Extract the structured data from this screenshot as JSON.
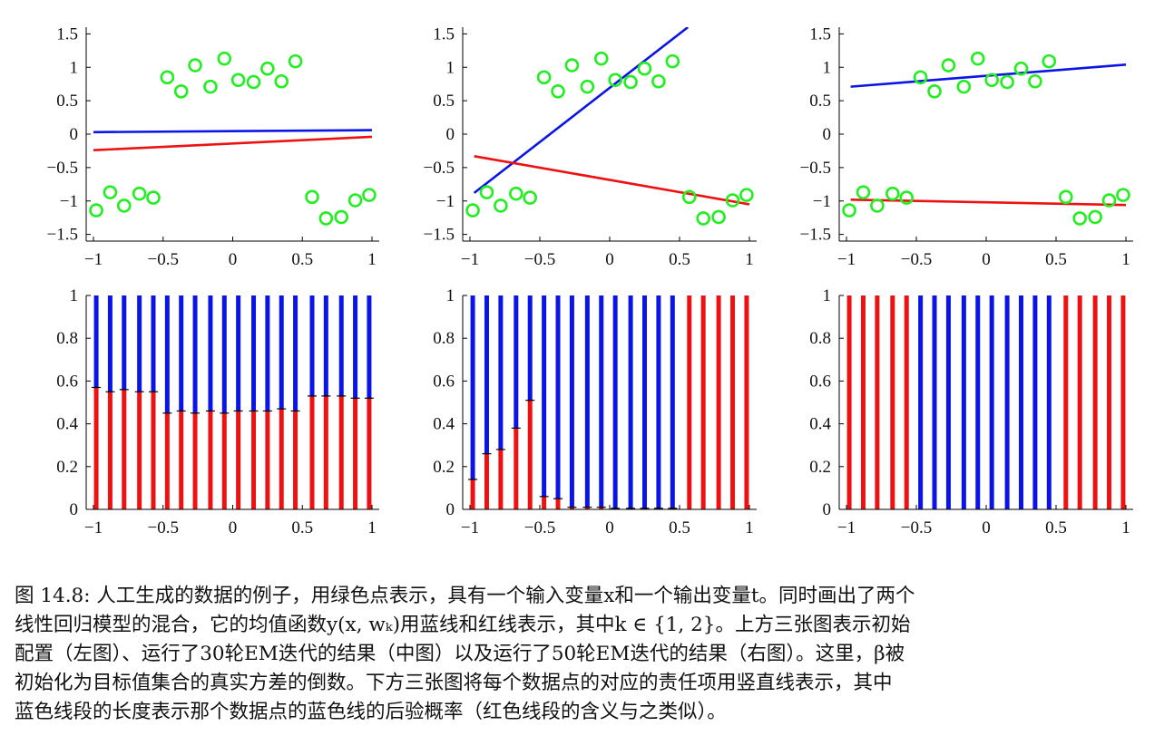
{
  "colors": {
    "green": "#22ee22",
    "blue": "#0a14e6",
    "red": "#ee1111",
    "axis": "#000000"
  },
  "chart_data": [
    {
      "type": "scatter",
      "panel": "top-left",
      "xlim": [
        -1,
        1
      ],
      "ylim": [
        -1.6,
        1.6
      ],
      "xticks": [
        "−1",
        "−0.5",
        "0",
        "0.5",
        "1"
      ],
      "yticks": [
        "1.5",
        "1",
        "0.5",
        "0",
        "−0.5",
        "−1",
        "−1.5"
      ],
      "points_x": [
        -0.98,
        -0.88,
        -0.78,
        -0.67,
        -0.57,
        -0.47,
        -0.37,
        -0.27,
        -0.16,
        -0.06,
        0.04,
        0.15,
        0.25,
        0.35,
        0.45,
        0.57,
        0.67,
        0.78,
        0.88,
        0.98
      ],
      "points_y": [
        -1.14,
        -0.87,
        -1.07,
        -0.89,
        -0.95,
        0.85,
        0.64,
        1.03,
        0.71,
        1.13,
        0.81,
        0.78,
        0.98,
        0.79,
        1.09,
        -0.94,
        -1.26,
        -1.24,
        -0.99,
        -0.91
      ],
      "lines": [
        {
          "name": "blue",
          "x": [
            -1,
            1
          ],
          "y": [
            0.03,
            0.06
          ]
        },
        {
          "name": "red",
          "x": [
            -1,
            1
          ],
          "y": [
            -0.24,
            -0.04
          ]
        }
      ]
    },
    {
      "type": "scatter",
      "panel": "top-middle",
      "xlim": [
        -1,
        1
      ],
      "ylim": [
        -1.6,
        1.6
      ],
      "xticks": [
        "−1",
        "−0.5",
        "0",
        "0.5",
        "1"
      ],
      "yticks": [
        "1.5",
        "1",
        "0.5",
        "0",
        "−0.5",
        "−1",
        "−1.5"
      ],
      "points_x": [
        -0.98,
        -0.88,
        -0.78,
        -0.67,
        -0.57,
        -0.47,
        -0.37,
        -0.27,
        -0.16,
        -0.06,
        0.04,
        0.15,
        0.25,
        0.35,
        0.45,
        0.57,
        0.67,
        0.78,
        0.88,
        0.98
      ],
      "points_y": [
        -1.14,
        -0.87,
        -1.07,
        -0.89,
        -0.95,
        0.85,
        0.64,
        1.03,
        0.71,
        1.13,
        0.81,
        0.78,
        0.98,
        0.79,
        1.09,
        -0.94,
        -1.26,
        -1.24,
        -0.99,
        -0.91
      ],
      "lines": [
        {
          "name": "blue",
          "x": [
            -0.97,
            0.56
          ],
          "y": [
            -0.88,
            1.6
          ]
        },
        {
          "name": "red",
          "x": [
            -0.97,
            1
          ],
          "y": [
            -0.33,
            -1.05
          ]
        }
      ]
    },
    {
      "type": "scatter",
      "panel": "top-right",
      "xlim": [
        -1,
        1
      ],
      "ylim": [
        -1.6,
        1.6
      ],
      "xticks": [
        "−1",
        "−0.5",
        "0",
        "0.5",
        "1"
      ],
      "yticks": [
        "1.5",
        "1",
        "0.5",
        "0",
        "−0.5",
        "−1",
        "−1.5"
      ],
      "points_x": [
        -0.98,
        -0.88,
        -0.78,
        -0.67,
        -0.57,
        -0.47,
        -0.37,
        -0.27,
        -0.16,
        -0.06,
        0.04,
        0.15,
        0.25,
        0.35,
        0.45,
        0.57,
        0.67,
        0.78,
        0.88,
        0.98
      ],
      "points_y": [
        -1.14,
        -0.87,
        -1.07,
        -0.89,
        -0.95,
        0.85,
        0.64,
        1.03,
        0.71,
        1.13,
        0.81,
        0.78,
        0.98,
        0.79,
        1.09,
        -0.94,
        -1.26,
        -1.24,
        -0.99,
        -0.91
      ],
      "lines": [
        {
          "name": "blue",
          "x": [
            -0.97,
            1
          ],
          "y": [
            0.71,
            1.04
          ]
        },
        {
          "name": "red",
          "x": [
            -0.97,
            1
          ],
          "y": [
            -0.98,
            -1.06
          ]
        }
      ]
    },
    {
      "type": "bar",
      "panel": "bottom-left",
      "xlim": [
        -1,
        1
      ],
      "ylim": [
        0,
        1
      ],
      "xticks": [
        "−1",
        "−0.5",
        "0",
        "0.5",
        "1"
      ],
      "yticks": [
        "1",
        "0.8",
        "0.6",
        "0.4",
        "0.2",
        "0"
      ],
      "x": [
        -0.98,
        -0.88,
        -0.78,
        -0.67,
        -0.57,
        -0.47,
        -0.37,
        -0.27,
        -0.16,
        -0.06,
        0.04,
        0.15,
        0.25,
        0.35,
        0.45,
        0.57,
        0.67,
        0.78,
        0.88,
        0.98
      ],
      "red_fraction": [
        0.57,
        0.55,
        0.56,
        0.55,
        0.55,
        0.45,
        0.46,
        0.45,
        0.46,
        0.45,
        0.46,
        0.46,
        0.46,
        0.47,
        0.46,
        0.53,
        0.53,
        0.53,
        0.52,
        0.52
      ]
    },
    {
      "type": "bar",
      "panel": "bottom-middle",
      "xlim": [
        -1,
        1
      ],
      "ylim": [
        0,
        1
      ],
      "xticks": [
        "−1",
        "−0.5",
        "0",
        "0.5",
        "1"
      ],
      "yticks": [
        "1",
        "0.8",
        "0.6",
        "0.4",
        "0.2",
        "0"
      ],
      "x": [
        -0.98,
        -0.88,
        -0.78,
        -0.67,
        -0.57,
        -0.47,
        -0.37,
        -0.27,
        -0.16,
        -0.06,
        0.04,
        0.15,
        0.25,
        0.35,
        0.45,
        0.57,
        0.67,
        0.78,
        0.88,
        0.98
      ],
      "red_fraction": [
        0.14,
        0.26,
        0.28,
        0.38,
        0.51,
        0.06,
        0.05,
        0.01,
        0.01,
        0.01,
        0.005,
        0.005,
        0.005,
        0.005,
        0.005,
        1,
        1,
        1,
        1,
        1
      ]
    },
    {
      "type": "bar",
      "panel": "bottom-right",
      "xlim": [
        -1,
        1
      ],
      "ylim": [
        0,
        1
      ],
      "xticks": [
        "−1",
        "−0.5",
        "0",
        "0.5",
        "1"
      ],
      "yticks": [
        "1",
        "0.8",
        "0.6",
        "0.4",
        "0.2",
        "0"
      ],
      "x": [
        -0.98,
        -0.88,
        -0.78,
        -0.67,
        -0.57,
        -0.47,
        -0.37,
        -0.27,
        -0.16,
        -0.06,
        0.04,
        0.15,
        0.25,
        0.35,
        0.45,
        0.57,
        0.67,
        0.78,
        0.88,
        0.98
      ],
      "red_fraction": [
        1,
        1,
        1,
        1,
        1,
        0,
        0,
        0,
        0,
        0,
        0,
        0,
        0,
        0,
        0,
        1,
        1,
        1,
        1,
        1
      ]
    }
  ],
  "caption": {
    "line1": "图 14.8: 人工生成的数据的例子，用绿色点表示，具有一个输入变量x和一个输出变量t。同时画出了两个",
    "line2": "线性回归模型的混合，它的均值函数y(x, wₖ)用蓝线和红线表示，其中k ∈ {1, 2}。上方三张图表示初始",
    "line3": "配置（左图）、运行了30轮EM迭代的结果（中图）以及运行了50轮EM迭代的结果（右图）。这里，β被",
    "line4": "初始化为目标值集合的真实方差的倒数。下方三张图将每个数据点的对应的责任项用竖直线表示，其中",
    "line5": "蓝色线段的长度表示那个数据点的蓝色线的后验概率（红色线段的含义与之类似）。"
  }
}
